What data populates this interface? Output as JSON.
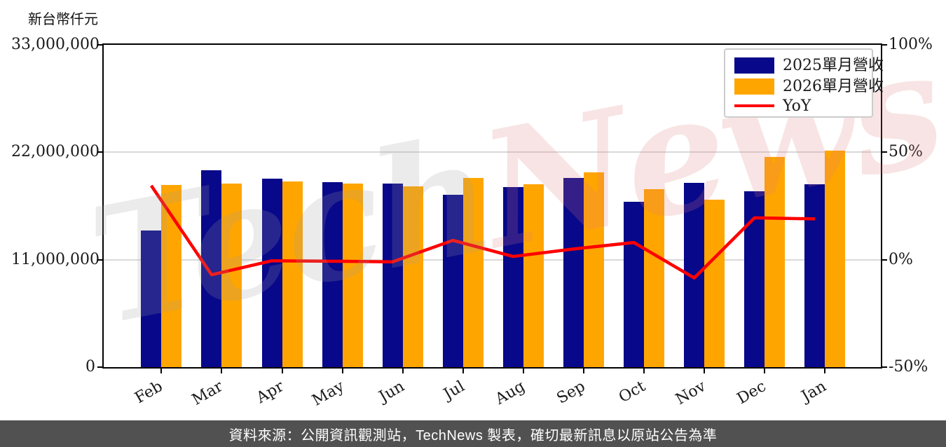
{
  "unit_label": "新台幣仟元",
  "watermark": {
    "part1": "Tech",
    "part2": "News",
    "color1": "#9f9f9f",
    "color2": "#e07c7c",
    "opacity": 0.2
  },
  "footer": {
    "text": "資料來源：公開資訊觀測站，TechNews 製表，確切最新訊息以原站公告為準",
    "bg": "#515151"
  },
  "colors": {
    "bar_2025": "#08088a",
    "bar_2026": "#ffa500",
    "yoy_line": "#ff0000",
    "grid": "#d9d9d9",
    "axis": "#000000"
  },
  "chart_data": {
    "type": "bar+line",
    "title": "",
    "categories": [
      "Feb",
      "Mar",
      "Apr",
      "May",
      "Jun",
      "Jul",
      "Aug",
      "Sep",
      "Oct",
      "Nov",
      "Dec",
      "Jan"
    ],
    "series": [
      {
        "name": "2025單月營收",
        "type": "bar",
        "axis": "left",
        "color": "#08088a",
        "values": [
          13990000,
          20160000,
          19300000,
          18940000,
          18800000,
          17650000,
          18440000,
          19370000,
          16930000,
          18870000,
          18010000,
          18730000
        ]
      },
      {
        "name": "2026單月營收",
        "type": "bar",
        "axis": "left",
        "color": "#ffa500",
        "values": [
          18660000,
          18800000,
          19010000,
          18800000,
          18510000,
          19370000,
          18730000,
          19950000,
          18220000,
          17150000,
          21520000,
          22170000
        ]
      },
      {
        "name": "YoY",
        "type": "line",
        "axis": "right",
        "color": "#ff0000",
        "values": [
          34.5,
          -7,
          -0.5,
          -0.7,
          -1,
          9,
          1.5,
          5,
          8,
          -8.5,
          19.5,
          19
        ]
      }
    ],
    "left_axis": {
      "unit": "新台幣仟元",
      "range": [
        0,
        33000000
      ],
      "tick_values": [
        33000000,
        22000000,
        11000000,
        0
      ],
      "tick_labels": [
        "33,000,000",
        "22,000,000",
        "11,000,000",
        "0"
      ]
    },
    "right_axis": {
      "range": [
        -50,
        100
      ],
      "tick_values": [
        100,
        50,
        0,
        -50
      ],
      "tick_labels": [
        "100%",
        "50%",
        "0%",
        "-50%"
      ]
    },
    "grid": {
      "horizontal_at": [
        22000000,
        11000000
      ],
      "color": "#d9d9d9"
    },
    "legend_position": "upper right"
  }
}
